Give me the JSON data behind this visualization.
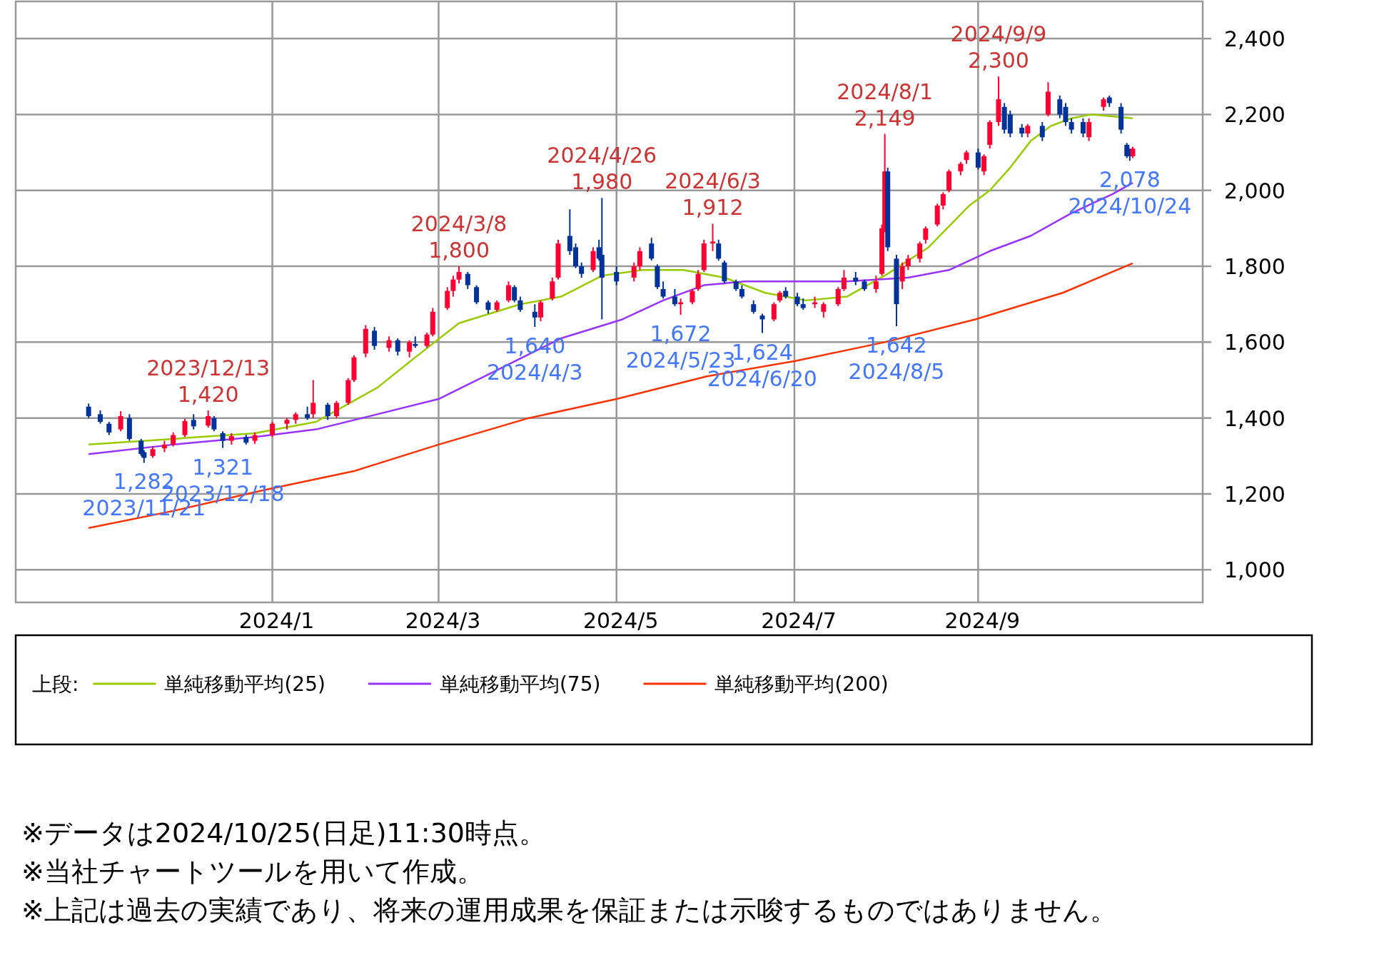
{
  "chart_data": {
    "type": "candlestick",
    "x": [
      "2023-11-02",
      "2023-11-06",
      "2023-11-09",
      "2023-11-13",
      "2023-11-16",
      "2023-11-20",
      "2023-11-21",
      "2023-11-24",
      "2023-11-28",
      "2023-12-01",
      "2023-12-05",
      "2023-12-08",
      "2023-12-13",
      "2023-12-15",
      "2023-12-18",
      "2023-12-21",
      "2023-12-26",
      "2023-12-29",
      "2024-01-04",
      "2024-01-09",
      "2024-01-12",
      "2024-01-16",
      "2024-01-18",
      "2024-01-23",
      "2024-01-26",
      "2024-01-30",
      "2024-02-01",
      "2024-02-05",
      "2024-02-08",
      "2024-02-13",
      "2024-02-16",
      "2024-02-20",
      "2024-02-22",
      "2024-02-26",
      "2024-02-28",
      "2024-03-04",
      "2024-03-06",
      "2024-03-08",
      "2024-03-11",
      "2024-03-14",
      "2024-03-18",
      "2024-03-21",
      "2024-03-25",
      "2024-03-27",
      "2024-03-29",
      "2024-04-03",
      "2024-04-05",
      "2024-04-09",
      "2024-04-11",
      "2024-04-15",
      "2024-04-17",
      "2024-04-19",
      "2024-04-23",
      "2024-04-25",
      "2024-04-26",
      "2024-05-01",
      "2024-05-07",
      "2024-05-09",
      "2024-05-13",
      "2024-05-15",
      "2024-05-17",
      "2024-05-21",
      "2024-05-23",
      "2024-05-27",
      "2024-05-29",
      "2024-05-31",
      "2024-06-03",
      "2024-06-05",
      "2024-06-07",
      "2024-06-11",
      "2024-06-13",
      "2024-06-17",
      "2024-06-20",
      "2024-06-24",
      "2024-06-26",
      "2024-06-28",
      "2024-07-02",
      "2024-07-04",
      "2024-07-08",
      "2024-07-11",
      "2024-07-16",
      "2024-07-18",
      "2024-07-22",
      "2024-07-25",
      "2024-07-29",
      "2024-07-31",
      "2024-08-01",
      "2024-08-02",
      "2024-08-05",
      "2024-08-07",
      "2024-08-09",
      "2024-08-13",
      "2024-08-15",
      "2024-08-19",
      "2024-08-21",
      "2024-08-23",
      "2024-08-27",
      "2024-08-29",
      "2024-09-02",
      "2024-09-04",
      "2024-09-06",
      "2024-09-09",
      "2024-09-11",
      "2024-09-13",
      "2024-09-17",
      "2024-09-19",
      "2024-09-24",
      "2024-09-26",
      "2024-09-30",
      "2024-10-02",
      "2024-10-04",
      "2024-10-08",
      "2024-10-10",
      "2024-10-15",
      "2024-10-17",
      "2024-10-21",
      "2024-10-23",
      "2024-10-24",
      "2024-10-25"
    ],
    "ohlc": [
      [
        1430,
        1438,
        1400,
        1405
      ],
      [
        1410,
        1420,
        1385,
        1390
      ],
      [
        1385,
        1390,
        1355,
        1362
      ],
      [
        1370,
        1418,
        1365,
        1405
      ],
      [
        1400,
        1410,
        1340,
        1345
      ],
      [
        1340,
        1345,
        1300,
        1305
      ],
      [
        1310,
        1315,
        1282,
        1295
      ],
      [
        1300,
        1325,
        1295,
        1318
      ],
      [
        1320,
        1340,
        1310,
        1330
      ],
      [
        1330,
        1362,
        1325,
        1355
      ],
      [
        1355,
        1398,
        1350,
        1392
      ],
      [
        1395,
        1410,
        1370,
        1378
      ],
      [
        1380,
        1420,
        1375,
        1405
      ],
      [
        1400,
        1405,
        1365,
        1370
      ],
      [
        1360,
        1365,
        1321,
        1340
      ],
      [
        1340,
        1360,
        1330,
        1352
      ],
      [
        1350,
        1356,
        1330,
        1335
      ],
      [
        1340,
        1362,
        1332,
        1355
      ],
      [
        1355,
        1390,
        1350,
        1385
      ],
      [
        1385,
        1400,
        1370,
        1395
      ],
      [
        1395,
        1415,
        1385,
        1410
      ],
      [
        1410,
        1430,
        1395,
        1400
      ],
      [
        1410,
        1500,
        1400,
        1440
      ],
      [
        1435,
        1440,
        1395,
        1405
      ],
      [
        1405,
        1445,
        1400,
        1440
      ],
      [
        1440,
        1505,
        1435,
        1500
      ],
      [
        1500,
        1565,
        1495,
        1560
      ],
      [
        1570,
        1645,
        1560,
        1635
      ],
      [
        1630,
        1640,
        1580,
        1590
      ],
      [
        1585,
        1615,
        1575,
        1605
      ],
      [
        1605,
        1610,
        1565,
        1575
      ],
      [
        1575,
        1605,
        1560,
        1600
      ],
      [
        1595,
        1615,
        1585,
        1590
      ],
      [
        1590,
        1625,
        1585,
        1620
      ],
      [
        1620,
        1690,
        1615,
        1680
      ],
      [
        1690,
        1745,
        1685,
        1735
      ],
      [
        1735,
        1775,
        1720,
        1765
      ],
      [
        1765,
        1800,
        1755,
        1785
      ],
      [
        1780,
        1785,
        1740,
        1750
      ],
      [
        1745,
        1750,
        1700,
        1705
      ],
      [
        1705,
        1710,
        1675,
        1685
      ],
      [
        1685,
        1710,
        1680,
        1705
      ],
      [
        1710,
        1760,
        1705,
        1750
      ],
      [
        1745,
        1750,
        1705,
        1710
      ],
      [
        1710,
        1720,
        1680,
        1685
      ],
      [
        1680,
        1700,
        1640,
        1665
      ],
      [
        1665,
        1710,
        1655,
        1705
      ],
      [
        1715,
        1770,
        1710,
        1760
      ],
      [
        1770,
        1870,
        1765,
        1860
      ],
      [
        1880,
        1950,
        1830,
        1840
      ],
      [
        1850,
        1860,
        1795,
        1800
      ],
      [
        1800,
        1810,
        1770,
        1780
      ],
      [
        1790,
        1850,
        1785,
        1840
      ],
      [
        1850,
        1870,
        1815,
        1820
      ],
      [
        1830,
        1980,
        1660,
        1770
      ],
      [
        1785,
        1800,
        1750,
        1760
      ],
      [
        1770,
        1810,
        1760,
        1800
      ],
      [
        1800,
        1850,
        1790,
        1840
      ],
      [
        1860,
        1875,
        1815,
        1820
      ],
      [
        1800,
        1805,
        1740,
        1745
      ],
      [
        1740,
        1760,
        1715,
        1720
      ],
      [
        1720,
        1740,
        1695,
        1700
      ],
      [
        1700,
        1715,
        1672,
        1705
      ],
      [
        1705,
        1740,
        1700,
        1735
      ],
      [
        1740,
        1790,
        1735,
        1780
      ],
      [
        1790,
        1870,
        1785,
        1860
      ],
      [
        1860,
        1912,
        1840,
        1865
      ],
      [
        1860,
        1870,
        1815,
        1820
      ],
      [
        1810,
        1815,
        1755,
        1760
      ],
      [
        1760,
        1765,
        1735,
        1740
      ],
      [
        1740,
        1750,
        1715,
        1720
      ],
      [
        1700,
        1710,
        1675,
        1680
      ],
      [
        1670,
        1675,
        1624,
        1660
      ],
      [
        1660,
        1705,
        1655,
        1700
      ],
      [
        1710,
        1735,
        1705,
        1730
      ],
      [
        1735,
        1745,
        1715,
        1720
      ],
      [
        1720,
        1730,
        1695,
        1700
      ],
      [
        1700,
        1715,
        1685,
        1690
      ],
      [
        1700,
        1720,
        1690,
        1705
      ],
      [
        1680,
        1705,
        1665,
        1700
      ],
      [
        1700,
        1745,
        1695,
        1740
      ],
      [
        1740,
        1790,
        1735,
        1770
      ],
      [
        1770,
        1785,
        1750,
        1760
      ],
      [
        1760,
        1765,
        1735,
        1740
      ],
      [
        1740,
        1775,
        1730,
        1760
      ],
      [
        1780,
        1910,
        1775,
        1900
      ],
      [
        1900,
        2149,
        1890,
        2050
      ],
      [
        2050,
        2060,
        1840,
        1850
      ],
      [
        1820,
        1830,
        1642,
        1700
      ],
      [
        1760,
        1810,
        1740,
        1800
      ],
      [
        1800,
        1830,
        1790,
        1820
      ],
      [
        1820,
        1865,
        1810,
        1860
      ],
      [
        1870,
        1905,
        1860,
        1900
      ],
      [
        1910,
        1965,
        1905,
        1960
      ],
      [
        1960,
        1995,
        1950,
        1990
      ],
      [
        2000,
        2055,
        1995,
        2050
      ],
      [
        2050,
        2075,
        2040,
        2070
      ],
      [
        2080,
        2105,
        2070,
        2100
      ],
      [
        2100,
        2110,
        2055,
        2060
      ],
      [
        2050,
        2095,
        2040,
        2090
      ],
      [
        2120,
        2185,
        2110,
        2180
      ],
      [
        2180,
        2300,
        2170,
        2240
      ],
      [
        2220,
        2230,
        2150,
        2160
      ],
      [
        2200,
        2210,
        2140,
        2150
      ],
      [
        2165,
        2175,
        2140,
        2150
      ],
      [
        2150,
        2175,
        2140,
        2170
      ],
      [
        2170,
        2180,
        2130,
        2140
      ],
      [
        2200,
        2285,
        2195,
        2260
      ],
      [
        2240,
        2250,
        2190,
        2200
      ],
      [
        2220,
        2230,
        2170,
        2180
      ],
      [
        2180,
        2190,
        2150,
        2160
      ],
      [
        2180,
        2190,
        2140,
        2150
      ],
      [
        2140,
        2190,
        2130,
        2180
      ],
      [
        2220,
        2245,
        2210,
        2240
      ],
      [
        2245,
        2250,
        2220,
        2230
      ],
      [
        2220,
        2230,
        2150,
        2160
      ],
      [
        2120,
        2125,
        2085,
        2090
      ],
      [
        2100,
        2110,
        2078,
        2090
      ],
      [
        2090,
        2115,
        2085,
        2110
      ]
    ],
    "series": [
      {
        "name": "単純移動平均(25)",
        "type": "line",
        "color": "#99cc00",
        "x": [
          "2023-11-02",
          "2023-12-01",
          "2023-12-29",
          "2024-01-19",
          "2024-02-09",
          "2024-02-22",
          "2024-03-08",
          "2024-03-29",
          "2024-04-12",
          "2024-04-26",
          "2024-05-10",
          "2024-05-24",
          "2024-06-07",
          "2024-06-21",
          "2024-07-05",
          "2024-07-19",
          "2024-08-02",
          "2024-08-16",
          "2024-08-30",
          "2024-09-06",
          "2024-09-13",
          "2024-09-20",
          "2024-09-27",
          "2024-10-04",
          "2024-10-11",
          "2024-10-18",
          "2024-10-25"
        ],
        "values": [
          1330,
          1345,
          1360,
          1390,
          1480,
          1560,
          1650,
          1700,
          1720,
          1775,
          1790,
          1790,
          1770,
          1730,
          1710,
          1720,
          1780,
          1850,
          1960,
          2000,
          2060,
          2130,
          2170,
          2190,
          2200,
          2195,
          2190
        ]
      },
      {
        "name": "単純移動平均(75)",
        "type": "line",
        "color": "#9933ff",
        "x": [
          "2023-11-02",
          "2023-12-01",
          "2023-12-29",
          "2024-01-19",
          "2024-02-09",
          "2024-03-01",
          "2024-03-22",
          "2024-04-12",
          "2024-05-03",
          "2024-05-17",
          "2024-05-31",
          "2024-06-14",
          "2024-06-28",
          "2024-07-19",
          "2024-08-09",
          "2024-08-23",
          "2024-09-06",
          "2024-09-20",
          "2024-10-04",
          "2024-10-18",
          "2024-10-25"
        ],
        "values": [
          1305,
          1330,
          1350,
          1370,
          1410,
          1450,
          1530,
          1610,
          1660,
          1710,
          1750,
          1760,
          1760,
          1760,
          1770,
          1790,
          1840,
          1880,
          1940,
          1990,
          2020
        ]
      },
      {
        "name": "単純移動平均(200)",
        "type": "line",
        "color": "#ff3300",
        "x": [
          "2023-11-02",
          "2023-12-01",
          "2024-01-01",
          "2024-02-01",
          "2024-03-01",
          "2024-04-01",
          "2024-05-01",
          "2024-06-01",
          "2024-07-01",
          "2024-08-01",
          "2024-09-01",
          "2024-10-01",
          "2024-10-25"
        ],
        "values": [
          1110,
          1155,
          1210,
          1260,
          1330,
          1400,
          1450,
          1510,
          1550,
          1600,
          1660,
          1730,
          1808
        ]
      }
    ],
    "xlim": [
      "2023-10-08",
      "2024-11-18"
    ],
    "xticks": [
      {
        "value": "2024-01-04",
        "label": "2024/1"
      },
      {
        "value": "2024-03-01",
        "label": "2024/3"
      },
      {
        "value": "2024-05-01",
        "label": "2024/5"
      },
      {
        "value": "2024-07-01",
        "label": "2024/7"
      },
      {
        "value": "2024-09-02",
        "label": "2024/9"
      }
    ],
    "ylim": [
      914,
      2498
    ],
    "yticks": [
      {
        "value": 1000,
        "label": "1,000"
      },
      {
        "value": 1200,
        "label": "1,200"
      },
      {
        "value": 1400,
        "label": "1,400"
      },
      {
        "value": 1600,
        "label": "1,600"
      },
      {
        "value": 1800,
        "label": "1,800"
      },
      {
        "value": 2000,
        "label": "2,000"
      },
      {
        "value": 2200,
        "label": "2,200"
      },
      {
        "value": 2400,
        "label": "2,400"
      }
    ],
    "grid": true,
    "legend": "bottom",
    "legend_title": "上段:",
    "annotations": [
      {
        "text": "2023/12/13",
        "x": "2023-12-13",
        "y": 1420
      },
      {
        "text": "1,420",
        "x": "2023-12-13",
        "y": 1420
      },
      {
        "text": "1,282",
        "x": "2023-11-21",
        "y": 1282
      },
      {
        "text": "2023/11/21",
        "x": "2023-11-21",
        "y": 1282
      },
      {
        "text": "1,321",
        "x": "2023-12-18",
        "y": 1321
      },
      {
        "text": "2023/12/18",
        "x": "2023-12-18",
        "y": 1321
      },
      {
        "text": "2024/3/8",
        "x": "2024-03-08",
        "y": 1800
      },
      {
        "text": "1,800",
        "x": "2024-03-08",
        "y": 1800
      },
      {
        "text": "1,640",
        "x": "2024-04-03",
        "y": 1640
      },
      {
        "text": "2024/4/3",
        "x": "2024-04-03",
        "y": 1640
      },
      {
        "text": "2024/4/26",
        "x": "2024-04-26",
        "y": 1980
      },
      {
        "text": "1,980",
        "x": "2024-04-26",
        "y": 1980
      },
      {
        "text": "1,672",
        "x": "2024-05-23",
        "y": 1672
      },
      {
        "text": "2024/5/23",
        "x": "2024-05-23",
        "y": 1672
      },
      {
        "text": "2024/6/3",
        "x": "2024-06-03",
        "y": 1912
      },
      {
        "text": "1,912",
        "x": "2024-06-03",
        "y": 1912
      },
      {
        "text": "1,624",
        "x": "2024-06-20",
        "y": 1624
      },
      {
        "text": "2024/6/20",
        "x": "2024-06-20",
        "y": 1624
      },
      {
        "text": "2024/8/1",
        "x": "2024-08-01",
        "y": 2149
      },
      {
        "text": "2,149",
        "x": "2024-08-01",
        "y": 2149
      },
      {
        "text": "1,642",
        "x": "2024-08-05",
        "y": 1642
      },
      {
        "text": "2024/8/5",
        "x": "2024-08-05",
        "y": 1642
      },
      {
        "text": "2024/9/9",
        "x": "2024-09-09",
        "y": 2300
      },
      {
        "text": "2,300",
        "x": "2024-09-09",
        "y": 2300
      },
      {
        "text": "2,078",
        "x": "2024-10-24",
        "y": 2078
      },
      {
        "text": "2024/10/24",
        "x": "2024-10-24",
        "y": 2078
      },
      "※データは2024/10/25(日足)11:30時点。",
      "※当社チャートツールを用いて作成。",
      "※上記は過去の実績であり、将来の運用成果を保証または示唆するものではありません。"
    ]
  }
}
